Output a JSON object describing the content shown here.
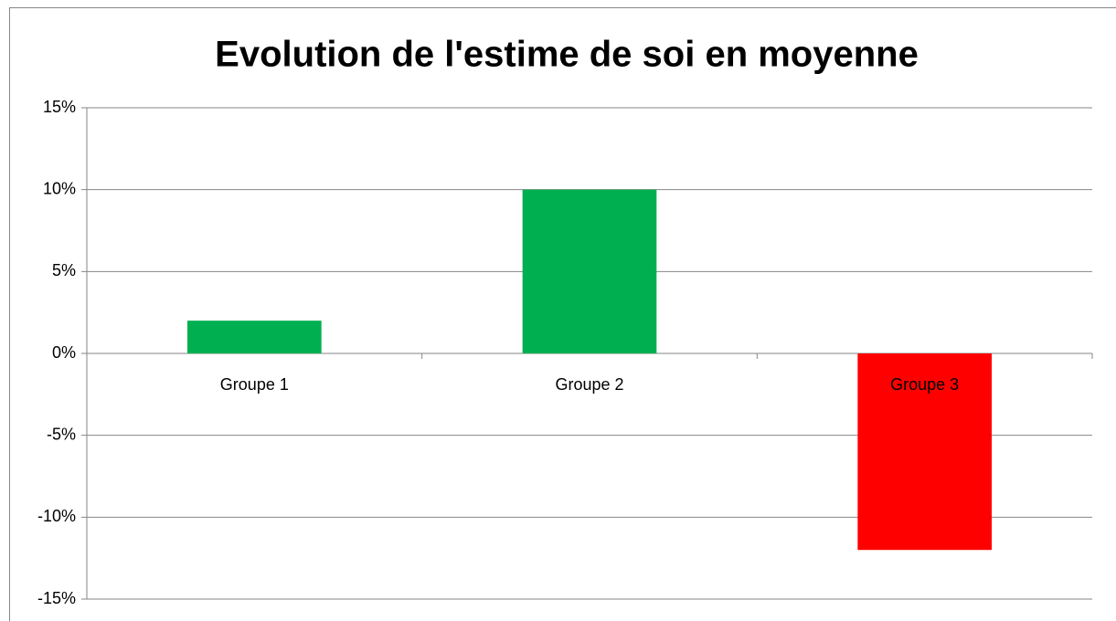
{
  "chart_data": {
    "type": "bar",
    "title": "Evolution de l'estime de soi en moyenne",
    "categories": [
      "Groupe 1",
      "Groupe 2",
      "Groupe 3"
    ],
    "values": [
      2,
      10,
      -12
    ],
    "colors": [
      "#00b050",
      "#00b050",
      "#ff0000"
    ],
    "ylim": [
      -15,
      15
    ],
    "yticks": [
      {
        "value": -15,
        "label": "-15%"
      },
      {
        "value": -10,
        "label": "-10%"
      },
      {
        "value": -5,
        "label": "-5%"
      },
      {
        "value": 0,
        "label": "0%"
      },
      {
        "value": 5,
        "label": "5%"
      },
      {
        "value": 10,
        "label": "10%"
      },
      {
        "value": 15,
        "label": "15%"
      }
    ],
    "grid": true
  }
}
